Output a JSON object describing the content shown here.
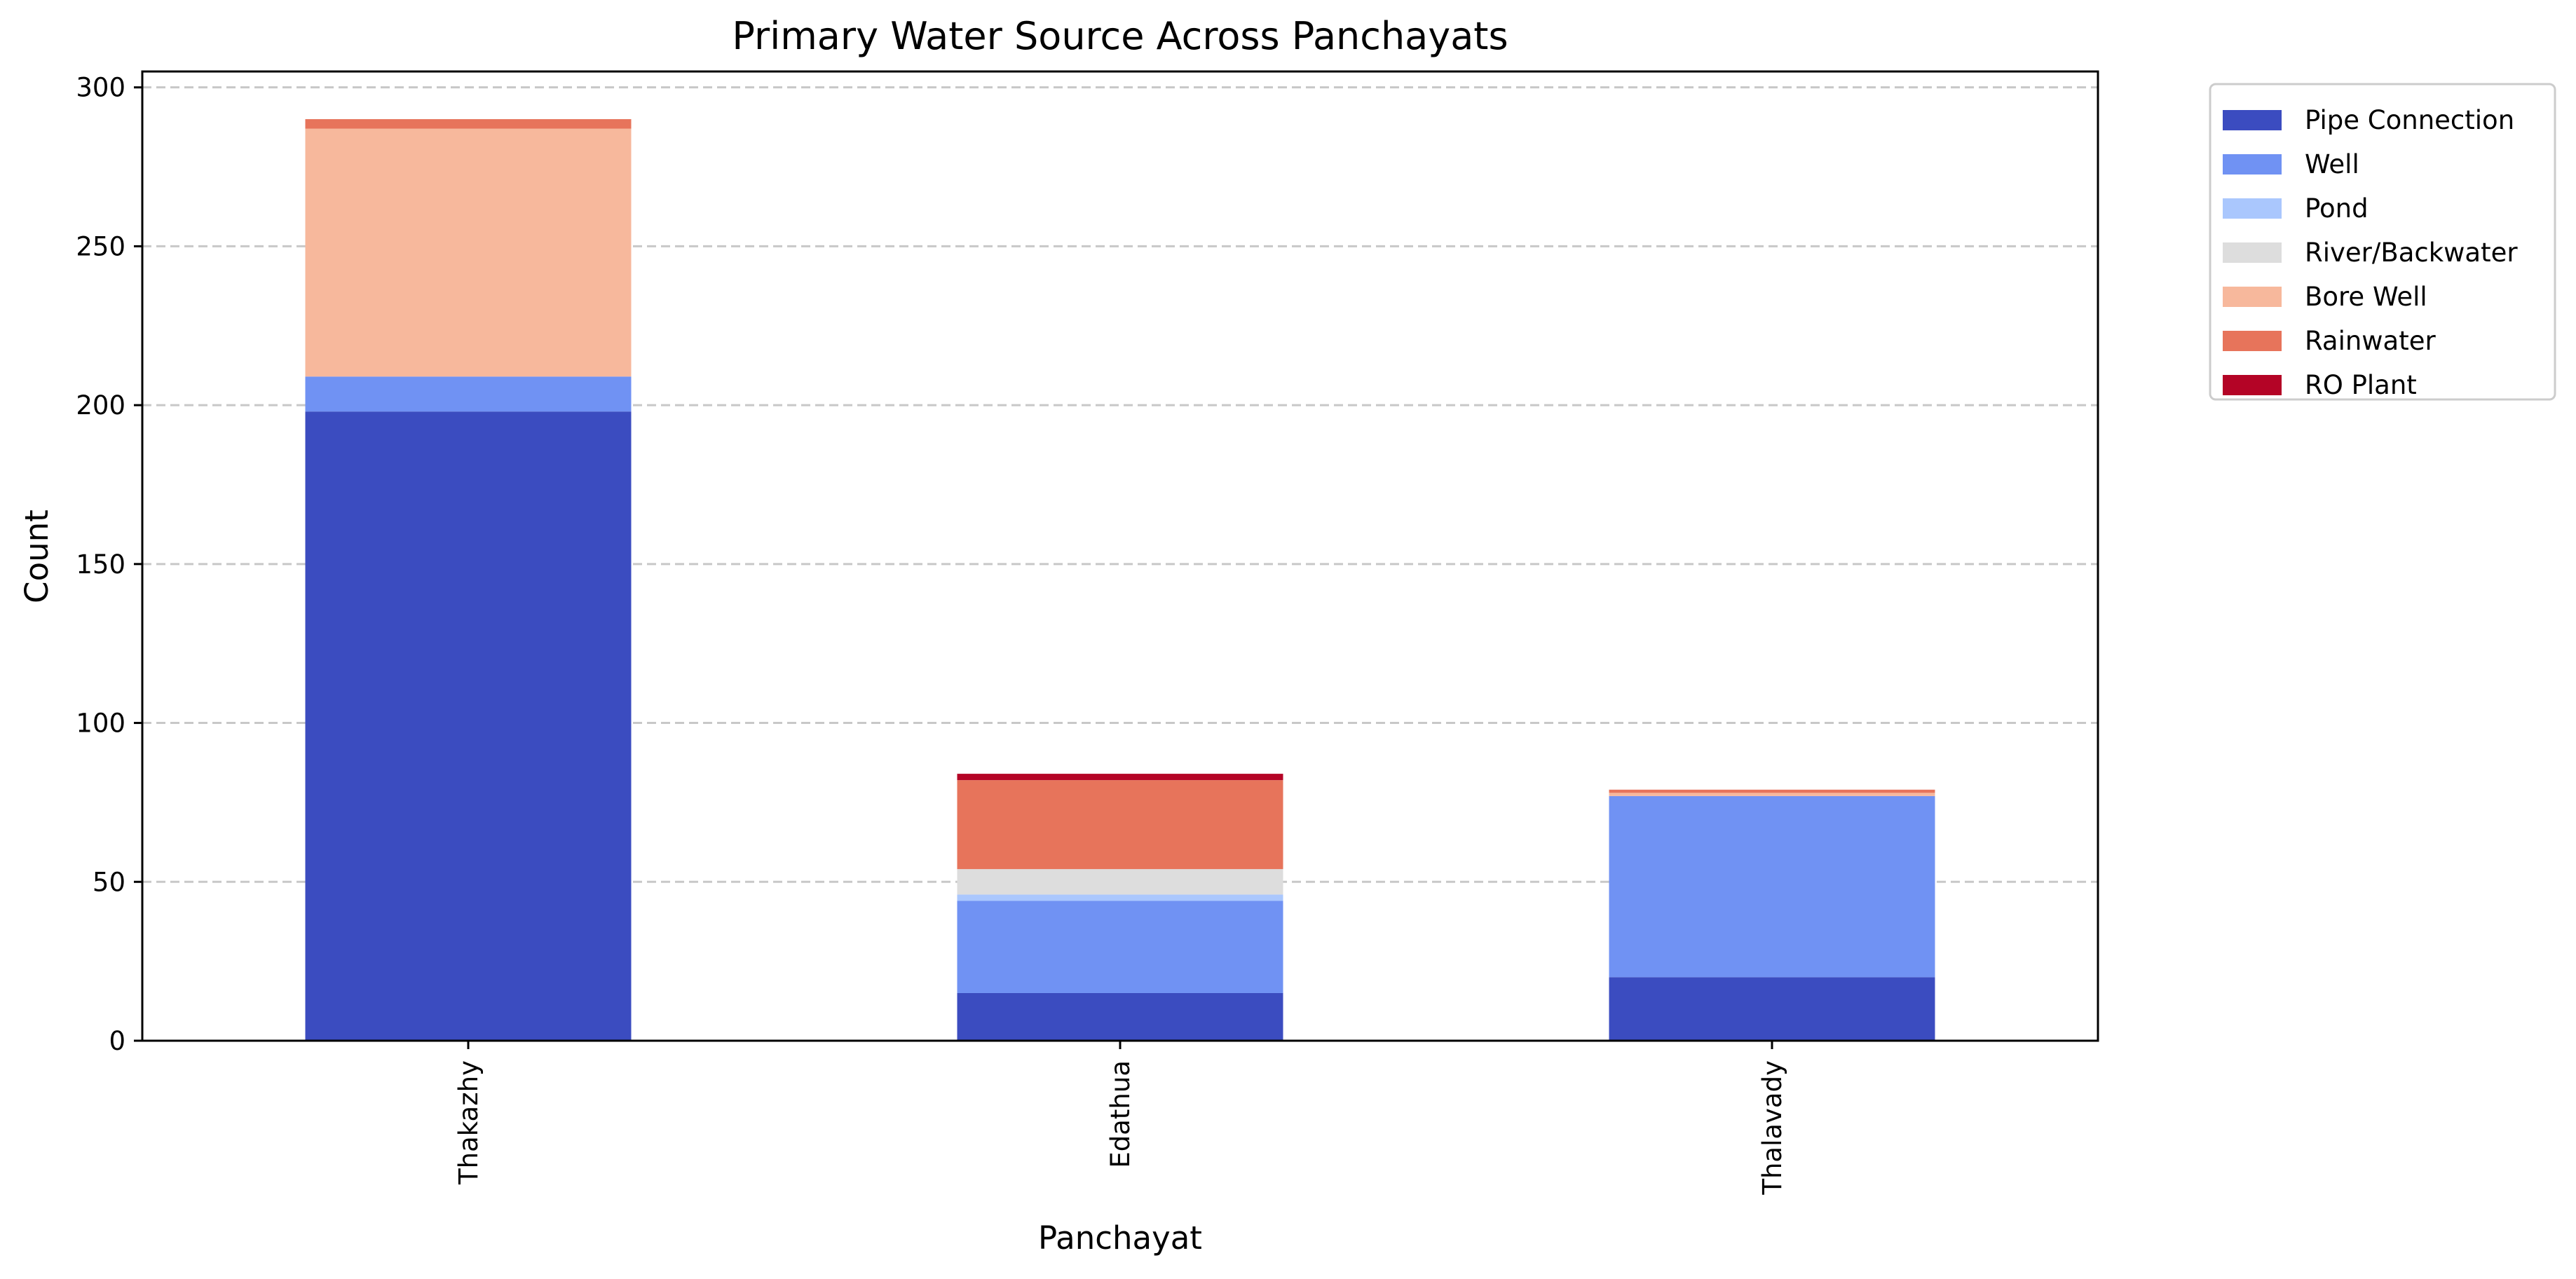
{
  "chart_data": {
    "type": "bar",
    "stacked": true,
    "title": "Primary Water Source Across Panchayats",
    "xlabel": "Panchayat",
    "ylabel": "Count",
    "categories": [
      "Thakazhy",
      "Edathua",
      "Thalavady"
    ],
    "ylim": [
      0,
      305
    ],
    "yticks": [
      0,
      50,
      100,
      150,
      200,
      250,
      300
    ],
    "grid": "y-dashed",
    "legend_position": "outside-top-right",
    "series": [
      {
        "name": "Pipe Connection",
        "color": "#3b4cc0",
        "values": [
          198,
          15,
          20
        ]
      },
      {
        "name": "Well",
        "color": "#7092f3",
        "values": [
          11,
          29,
          57
        ]
      },
      {
        "name": "Pond",
        "color": "#aac7fd",
        "values": [
          0,
          2,
          0
        ]
      },
      {
        "name": "River/Backwater",
        "color": "#dddddd",
        "values": [
          0,
          8,
          0
        ]
      },
      {
        "name": "Bore Well",
        "color": "#f7b89c",
        "values": [
          78,
          0,
          1
        ]
      },
      {
        "name": "Rainwater",
        "color": "#e7745b",
        "values": [
          3,
          28,
          1
        ]
      },
      {
        "name": "RO Plant",
        "color": "#b40426",
        "values": [
          0,
          2,
          0
        ]
      }
    ]
  }
}
